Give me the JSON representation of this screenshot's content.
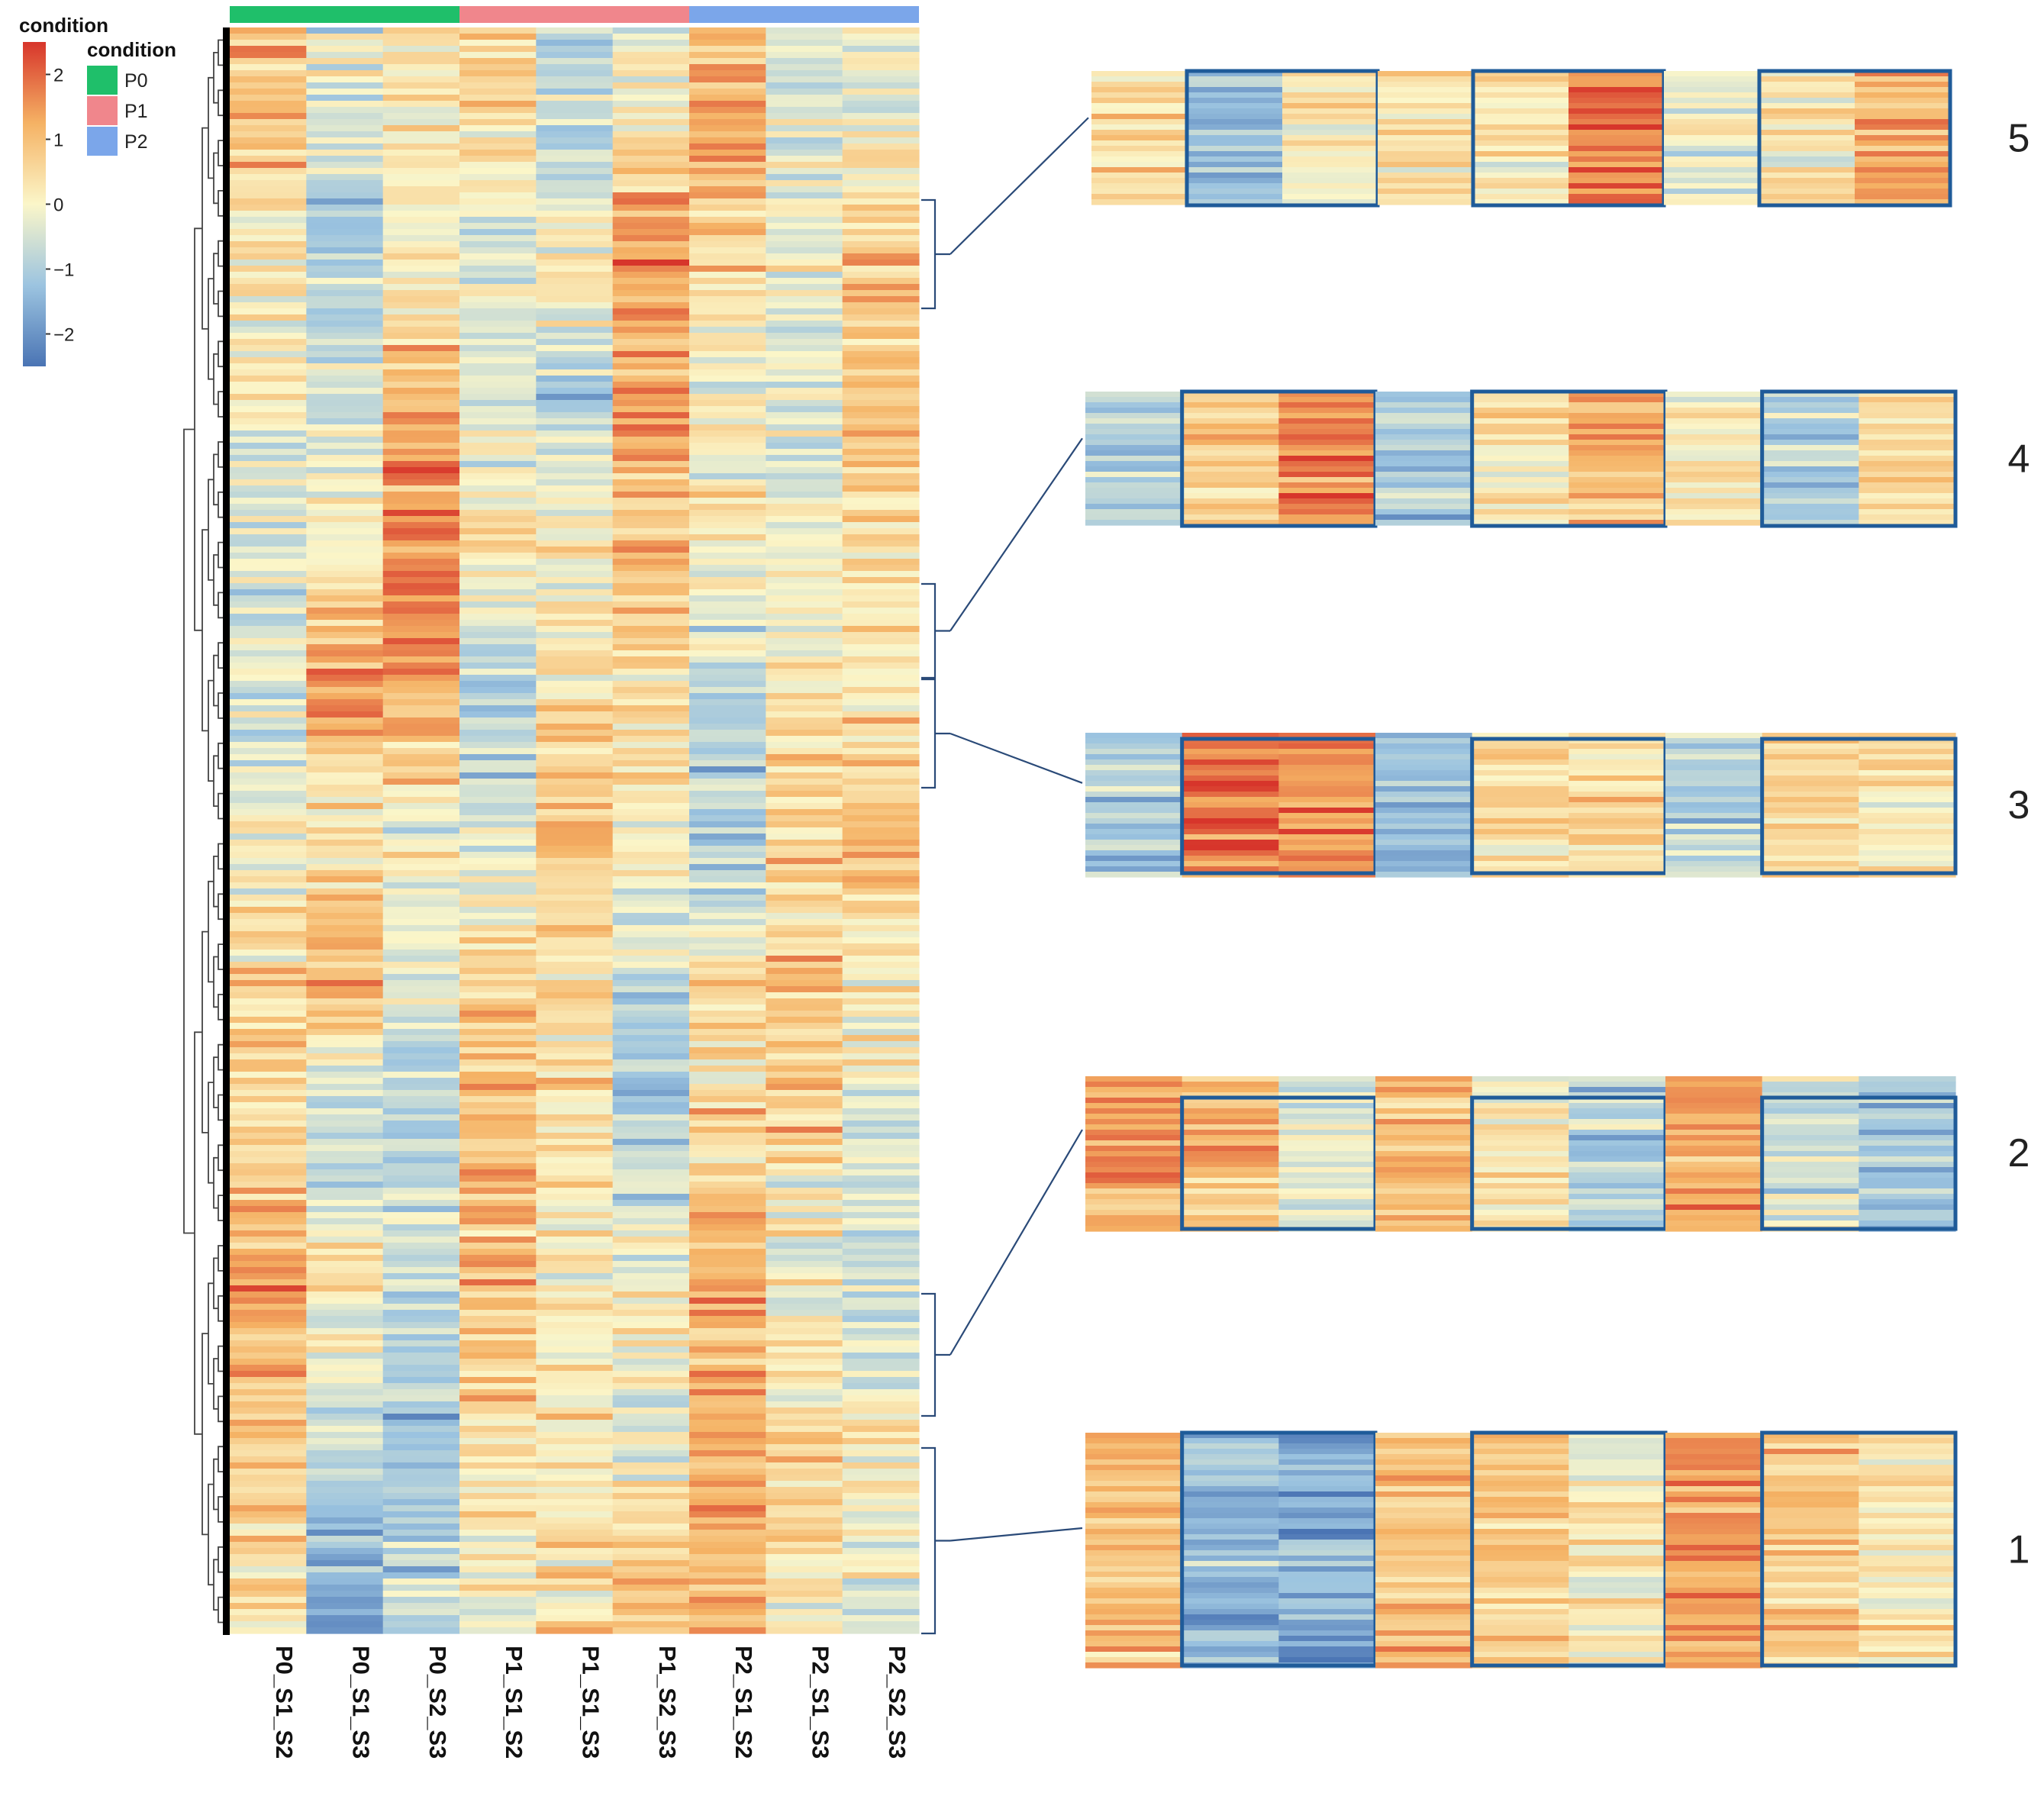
{
  "chart_data": {
    "type": "heatmap",
    "title": "",
    "columns": [
      "P0_S1_S2",
      "P0_S1_S3",
      "P0_S2_S3",
      "P1_S1_S2",
      "P1_S1_S3",
      "P1_S2_S3",
      "P2_S1_S2",
      "P2_S1_S3",
      "P2_S2_S3"
    ],
    "column_groups": [
      {
        "name": "P0",
        "columns": [
          "P0_S1_S2",
          "P0_S1_S3",
          "P0_S2_S3"
        ],
        "color": "#1fbf6a"
      },
      {
        "name": "P1",
        "columns": [
          "P1_S1_S2",
          "P1_S1_S3",
          "P1_S2_S3"
        ],
        "color": "#f0868c"
      },
      {
        "name": "P2",
        "columns": [
          "P2_S1_S2",
          "P2_S1_S3",
          "P2_S2_S3"
        ],
        "color": "#7ba6ea"
      }
    ],
    "colorbar": {
      "title": "condition",
      "range": [
        -2.5,
        2.5
      ],
      "ticks": [
        2,
        1,
        0,
        -1,
        -2
      ],
      "tick_labels": [
        "2",
        "1",
        "0",
        "−1",
        "−2"
      ],
      "colors": [
        "#4a74b4",
        "#9cc4e0",
        "#fbf6c9",
        "#f5b264",
        "#d7352b"
      ]
    },
    "legend": {
      "title": "condition",
      "entries": [
        {
          "label": "P0",
          "color": "#1fbf6a"
        },
        {
          "label": "P1",
          "color": "#f0868c"
        },
        {
          "label": "P2",
          "color": "#7ba6ea"
        }
      ]
    },
    "row_dendrogram": true,
    "row_bands_mean_zscore": [
      [
        1.0,
        -0.2,
        0.1,
        0.7,
        -0.8,
        0.0,
        1.3,
        -0.3,
        -0.2
      ],
      [
        0.2,
        -1.3,
        0.3,
        -0.6,
        0.1,
        1.6,
        0.5,
        -0.2,
        0.9
      ],
      [
        0.0,
        -0.5,
        1.1,
        -0.4,
        -0.9,
        1.3,
        0.0,
        -0.6,
        1.0
      ],
      [
        -0.4,
        0.4,
        1.6,
        0.3,
        0.0,
        1.1,
        0.2,
        -0.3,
        0.5
      ],
      [
        -0.5,
        1.4,
        1.5,
        -1.1,
        0.3,
        0.4,
        -0.8,
        0.2,
        0.3
      ],
      [
        -0.3,
        0.3,
        0.0,
        -0.5,
        0.9,
        0.2,
        -1.3,
        0.5,
        0.9
      ],
      [
        0.5,
        1.5,
        -0.4,
        0.6,
        0.6,
        -0.8,
        0.4,
        0.9,
        0.3
      ],
      [
        0.3,
        -0.9,
        -0.8,
        1.0,
        0.2,
        -1.1,
        0.6,
        0.7,
        -0.4
      ],
      [
        1.2,
        0.2,
        -0.5,
        1.2,
        0.1,
        0.2,
        1.3,
        -0.2,
        -0.9
      ],
      [
        0.8,
        -0.4,
        -1.2,
        0.6,
        0.2,
        -0.3,
        1.2,
        0.6,
        0.2
      ],
      [
        0.6,
        -1.5,
        -0.8,
        -0.1,
        0.5,
        0.9,
        1.0,
        0.3,
        -0.2
      ]
    ],
    "clusters": [
      {
        "label": "5",
        "blocks": [
          [
            0.3,
            -1.2,
            0.2
          ],
          [
            0.4,
            0.2,
            1.8
          ],
          [
            -0.3,
            0.2,
            1.2
          ]
        ]
      },
      {
        "label": "4",
        "blocks": [
          [
            -0.9,
            0.6,
            1.8
          ],
          [
            -1.0,
            0.3,
            1.2
          ],
          [
            0.1,
            -0.8,
            0.6
          ]
        ]
      },
      {
        "label": "3",
        "blocks": [
          [
            -1.0,
            1.8,
            1.5
          ],
          [
            -1.3,
            0.4,
            0.6
          ],
          [
            -0.9,
            0.6,
            0.3
          ]
        ]
      },
      {
        "label": "2",
        "blocks": [
          [
            1.2,
            0.9,
            -0.3
          ],
          [
            1.0,
            0.2,
            -0.9
          ],
          [
            1.3,
            -0.4,
            -1.2
          ]
        ]
      },
      {
        "label": "1",
        "blocks": [
          [
            1.0,
            -1.4,
            -1.6
          ],
          [
            1.0,
            0.8,
            0.2
          ],
          [
            1.4,
            0.8,
            0.3
          ]
        ]
      }
    ]
  }
}
